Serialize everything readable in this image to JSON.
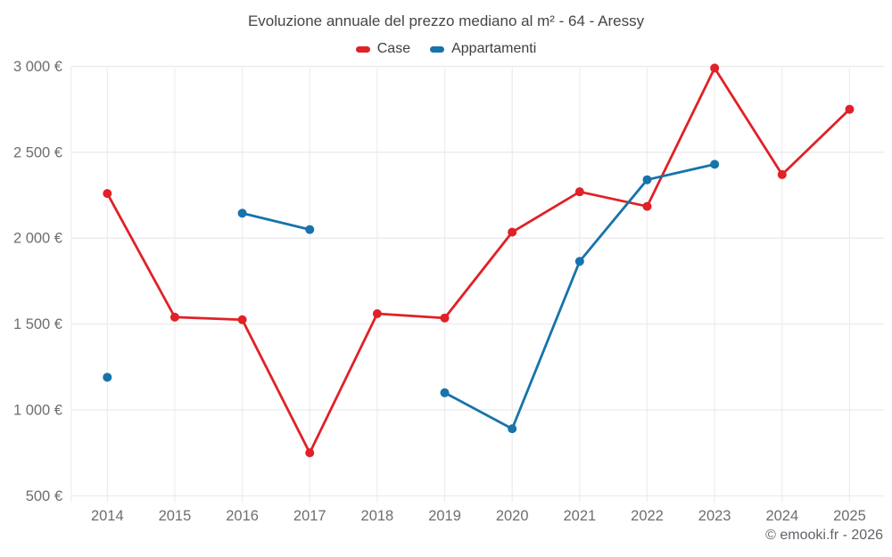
{
  "chart_data": {
    "type": "line",
    "title": "Evoluzione annuale del prezzo mediano al m² - 64 - Aressy",
    "categories": [
      "2014",
      "2015",
      "2016",
      "2017",
      "2018",
      "2019",
      "2020",
      "2021",
      "2022",
      "2023",
      "2024",
      "2025"
    ],
    "series": [
      {
        "name": "Case",
        "color": "#e02127",
        "values": [
          2260,
          1540,
          1525,
          750,
          1560,
          1535,
          2035,
          2270,
          2185,
          2990,
          2370,
          2750
        ]
      },
      {
        "name": "Appartamenti",
        "color": "#1673ab",
        "values": [
          1190,
          null,
          2145,
          2050,
          null,
          1100,
          890,
          1865,
          2340,
          2430,
          null,
          null
        ]
      }
    ],
    "yticks": [
      500,
      1000,
      1500,
      2000,
      2500,
      3000
    ],
    "ytick_labels": [
      "500 €",
      "1 000 €",
      "1 500 €",
      "2 000 €",
      "2 500 €",
      "3 000 €"
    ],
    "ylim": [
      500,
      3000
    ],
    "grid": true,
    "legend_position": "top",
    "gridline_color": "#e9e9e9",
    "vertical_gridline_color": "#ededed",
    "marker_radius": 5
  },
  "footer": {
    "copyright": "© emooki.fr - 2026"
  }
}
